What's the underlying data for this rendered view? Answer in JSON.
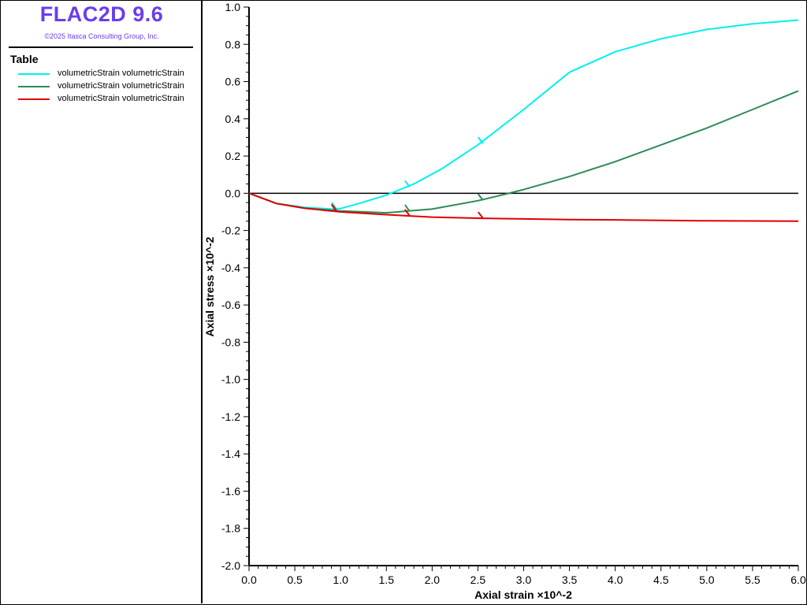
{
  "header": {
    "app_title": "FLAC2D 9.6",
    "copyright": "©2025 Itasca Consulting Group, Inc."
  },
  "legend": {
    "title": "Table",
    "items": [
      {
        "label": "volumetricStrain volumetricStrain",
        "color": "#00f0f0"
      },
      {
        "label": "volumetricStrain volumetricStrain",
        "color": "#2e8b57"
      },
      {
        "label": "volumetricStrain volumetricStrain",
        "color": "#e00000"
      }
    ]
  },
  "chart_data": {
    "type": "line",
    "xlabel": "Axial strain ×10^-2",
    "ylabel": "Axial stress ×10^-2",
    "xlim": [
      0.0,
      6.0
    ],
    "ylim": [
      -2.0,
      1.0
    ],
    "x_ticks": [
      "0.0",
      "0.5",
      "1.0",
      "1.5",
      "2.0",
      "2.5",
      "3.0",
      "3.5",
      "4.0",
      "4.5",
      "5.0",
      "5.5",
      "6.0"
    ],
    "y_ticks": [
      "1.0",
      "0.8",
      "0.6",
      "0.4",
      "0.2",
      "0.0",
      "-0.2",
      "-0.4",
      "-0.6",
      "-0.8",
      "-1.0",
      "-1.2",
      "-1.4",
      "-1.6",
      "-1.8",
      "-2.0"
    ],
    "zero_line": 0.0,
    "series": [
      {
        "name": "volumetricStrain volumetricStrain",
        "color": "#00f0f0",
        "x": [
          0.0,
          0.3,
          0.6,
          0.9,
          1.0,
          1.2,
          1.5,
          1.8,
          2.1,
          2.5,
          3.0,
          3.5,
          4.0,
          4.5,
          5.0,
          5.5,
          6.0
        ],
        "y": [
          0.0,
          -0.055,
          -0.075,
          -0.085,
          -0.082,
          -0.055,
          -0.01,
          0.05,
          0.13,
          0.26,
          0.45,
          0.65,
          0.76,
          0.83,
          0.88,
          0.91,
          0.93
        ],
        "markers": [
          0.92,
          1.72,
          2.52
        ]
      },
      {
        "name": "volumetricStrain volumetricStrain",
        "color": "#2e8b57",
        "x": [
          0.0,
          0.3,
          0.6,
          1.0,
          1.5,
          2.0,
          2.5,
          2.8,
          3.0,
          3.5,
          4.0,
          4.5,
          5.0,
          5.5,
          6.0
        ],
        "y": [
          0.0,
          -0.055,
          -0.08,
          -0.095,
          -0.105,
          -0.085,
          -0.04,
          -0.005,
          0.02,
          0.09,
          0.17,
          0.26,
          0.35,
          0.45,
          0.55
        ],
        "markers": [
          0.92,
          1.72,
          2.52
        ]
      },
      {
        "name": "volumetricStrain volumetricStrain",
        "color": "#e00000",
        "x": [
          0.0,
          0.3,
          0.6,
          1.0,
          1.5,
          2.0,
          2.5,
          3.0,
          3.5,
          4.0,
          4.5,
          5.0,
          5.5,
          6.0
        ],
        "y": [
          0.0,
          -0.055,
          -0.08,
          -0.1,
          -0.115,
          -0.128,
          -0.134,
          -0.138,
          -0.141,
          -0.143,
          -0.146,
          -0.148,
          -0.149,
          -0.15
        ],
        "markers": [
          0.92,
          1.72,
          2.52
        ]
      }
    ]
  }
}
